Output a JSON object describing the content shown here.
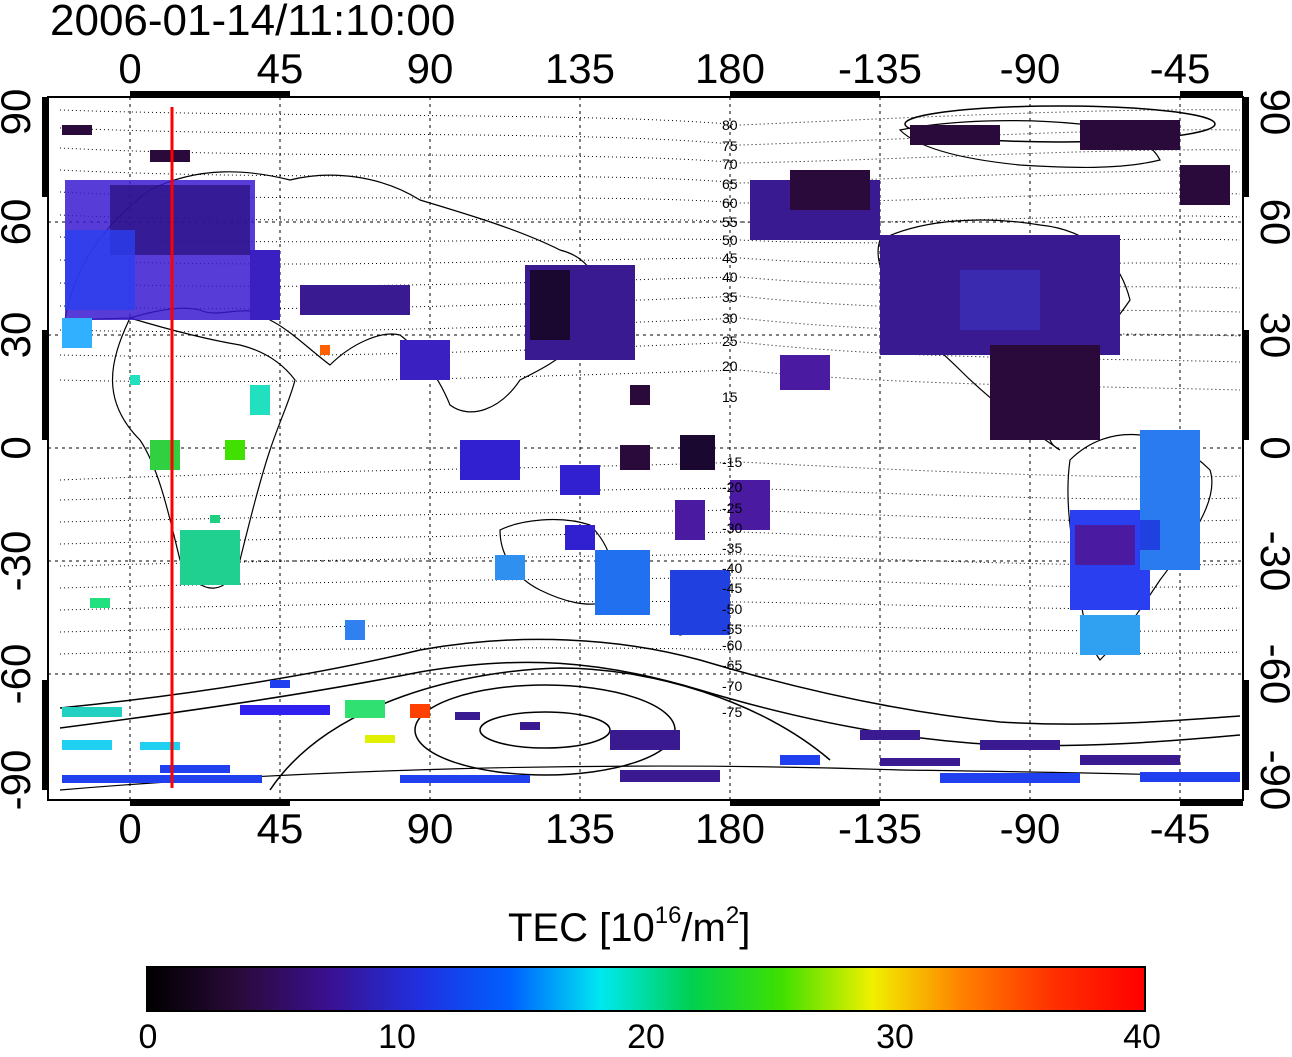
{
  "title": "2006-01-14/11:10:00",
  "map": {
    "lon_tick_labels": [
      "0",
      "45",
      "90",
      "135",
      "180",
      "-135",
      "-90",
      "-45"
    ],
    "lat_tick_labels": [
      "90",
      "60",
      "30",
      "0",
      "-30",
      "-60",
      "-90"
    ],
    "geomagnetic_lat_labels": [
      "80",
      "75",
      "70",
      "65",
      "60",
      "55",
      "50",
      "45",
      "40",
      "35",
      "30",
      "25",
      "20",
      "15",
      "-15",
      "-20",
      "-25",
      "-30",
      "-35",
      "-40",
      "-45",
      "-50",
      "-55",
      "-60",
      "-65",
      "-70",
      "-75"
    ],
    "marker_line_color": "#ff0000"
  },
  "colorbar": {
    "label_prefix": "TEC  [10",
    "label_sup1": "16",
    "label_mid": "/m",
    "label_sup2": "2",
    "label_suffix": "]",
    "tick_labels": [
      "0",
      "10",
      "20",
      "30",
      "40"
    ],
    "range": [
      0,
      40
    ],
    "colors": [
      "#000000",
      "#2a0a3a",
      "#3a1090",
      "#2030e0",
      "#0060ff",
      "#00e8f0",
      "#00d050",
      "#40e000",
      "#f0f000",
      "#ff8000",
      "#ff3000",
      "#ff0000"
    ]
  }
}
